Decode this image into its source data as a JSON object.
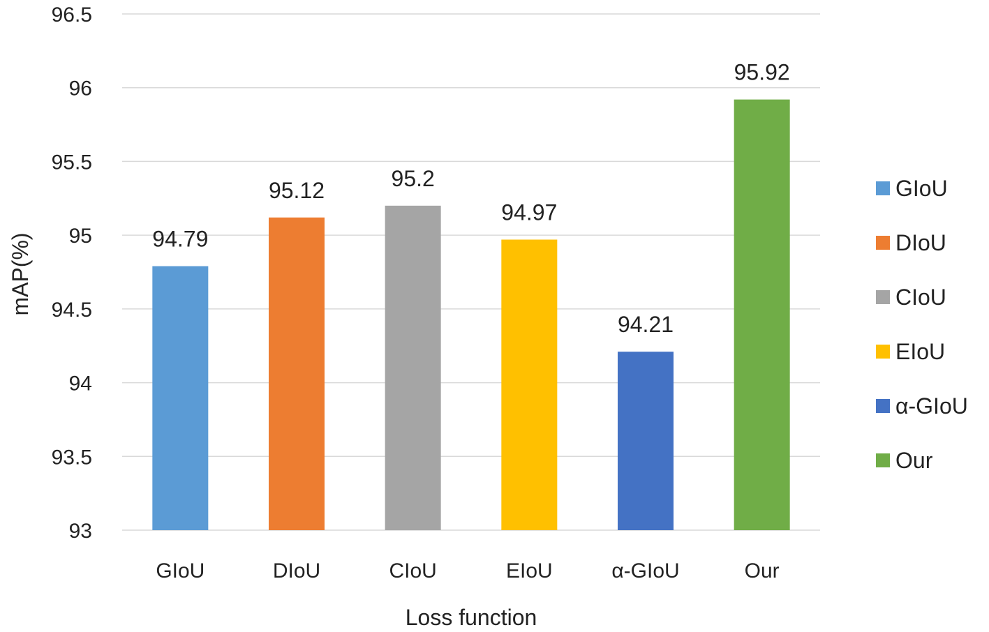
{
  "chart_data": {
    "type": "bar",
    "title": "",
    "xlabel": "Loss function",
    "ylabel": "mAP(%)",
    "ylim": [
      93,
      96.5
    ],
    "yticks": [
      "93",
      "93.5",
      "94",
      "94.5",
      "95",
      "95.5",
      "96",
      "96.5"
    ],
    "ytick_values": [
      93,
      93.5,
      94,
      94.5,
      95,
      95.5,
      96,
      96.5
    ],
    "categories": [
      "GIoU",
      "DIoU",
      "CIoU",
      "EIoU",
      "α-GIoU",
      "Our"
    ],
    "values": [
      94.79,
      95.12,
      95.2,
      94.97,
      94.21,
      95.92
    ],
    "data_labels": [
      "94.79",
      "95.12",
      "95.2",
      "94.97",
      "94.21",
      "95.92"
    ],
    "colors": [
      "#5B9BD5",
      "#ED7D31",
      "#A5A5A5",
      "#FFC000",
      "#4472C4",
      "#70AD47"
    ],
    "grid": true,
    "grid_color": "#D9D9D9",
    "legend": {
      "position": "right",
      "entries": [
        "GIoU",
        "DIoU",
        "CIoU",
        "EIoU",
        "α-GIoU",
        "Our"
      ]
    }
  }
}
